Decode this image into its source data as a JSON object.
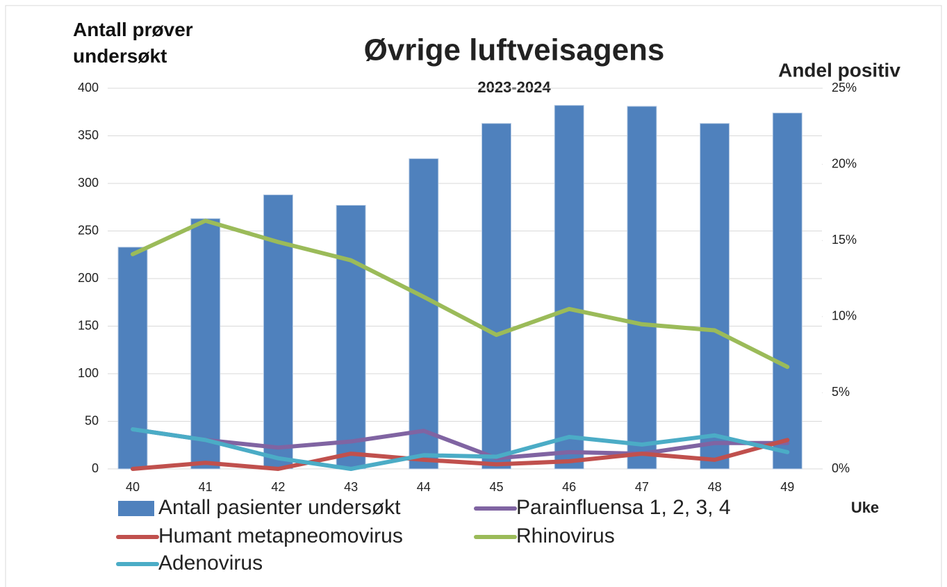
{
  "chart_data": {
    "type": "bar-line",
    "title": "Øvrige luftveisagens",
    "subtitle": "2023-2024",
    "y_label": "Antall prøver undersøkt",
    "y2_label": "Andel positiv",
    "x_label": "Uke",
    "categories": [
      "40",
      "41",
      "42",
      "43",
      "44",
      "45",
      "46",
      "47",
      "48",
      "49"
    ],
    "ylim": [
      0,
      400
    ],
    "yticks": [
      0,
      50,
      100,
      150,
      200,
      250,
      300,
      350,
      400
    ],
    "y2lim": [
      0,
      25
    ],
    "y2ticks": [
      {
        "value": 0,
        "label": "0%"
      },
      {
        "value": 5,
        "label": "5%"
      },
      {
        "value": 10,
        "label": "10%"
      },
      {
        "value": 15,
        "label": "15%"
      },
      {
        "value": 20,
        "label": "20%"
      },
      {
        "value": 25,
        "label": "25%"
      }
    ],
    "grid": true,
    "series": [
      {
        "name": "Antall pasienter undersøkt",
        "type": "bar",
        "color": "#4f81bd",
        "values": [
          233,
          263,
          288,
          277,
          326,
          363,
          382,
          381,
          363,
          374
        ]
      },
      {
        "name": "Parainfluensa 1, 2, 3, 4",
        "type": "line",
        "axis": "y2",
        "color": "#8064a2",
        "values": [
          2.6,
          1.9,
          1.4,
          1.8,
          2.5,
          0.7,
          1.1,
          1.0,
          1.7,
          1.7
        ]
      },
      {
        "name": "Humant metapneomovirus",
        "type": "line",
        "axis": "y2",
        "color": "#c0504d",
        "values": [
          0,
          0.4,
          0,
          1.0,
          0.6,
          0.3,
          0.5,
          1.0,
          0.6,
          1.9
        ]
      },
      {
        "name": "Rhinovirus",
        "type": "line",
        "axis": "y2",
        "color": "#9bbb59",
        "values": [
          14.1,
          16.3,
          14.9,
          13.7,
          11.3,
          8.8,
          10.5,
          9.5,
          9.1,
          6.7
        ]
      },
      {
        "name": "Adenovirus",
        "type": "line",
        "axis": "y2",
        "color": "#4bacc6",
        "values": [
          2.6,
          1.9,
          0.7,
          0,
          0.9,
          0.8,
          2.1,
          1.6,
          2.2,
          1.1
        ]
      }
    ]
  }
}
